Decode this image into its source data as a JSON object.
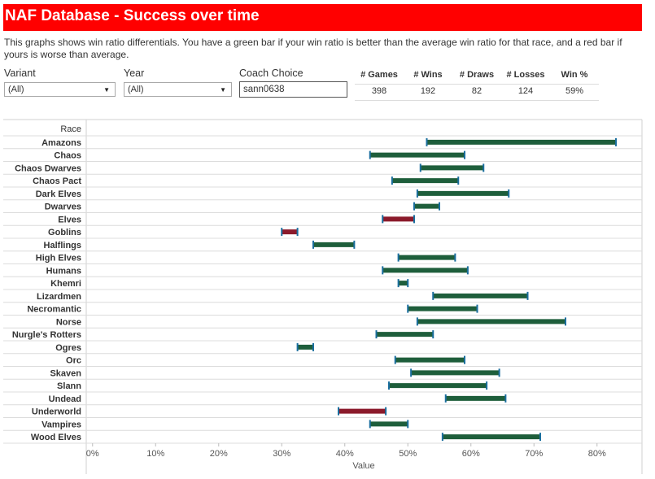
{
  "header": {
    "title": "NAF Database - Success over time"
  },
  "description": "This graphs shows win ratio differentials.  You have a green bar if your win ratio is better than the average win ratio for that race, and a red bar if yours is worse than average.",
  "filters": {
    "variant": {
      "label": "Variant",
      "value": "(All)"
    },
    "year": {
      "label": "Year",
      "value": "(All)"
    },
    "coach": {
      "label": "Coach Choice",
      "value": "sann0638"
    }
  },
  "stats": {
    "headers": [
      "# Games",
      "# Wins",
      "# Draws",
      "# Losses",
      "Win %"
    ],
    "values": [
      "398",
      "192",
      "82",
      "124",
      "59%"
    ]
  },
  "colors": {
    "better": "#1e5e3b",
    "worse": "#8b1a2b",
    "cap": "#1a6e9e",
    "header": "#ff0000"
  },
  "chart_data": {
    "type": "bar",
    "orientation": "horizontal",
    "row_header": "Race",
    "xlabel": "Value",
    "xlim": [
      -0.01,
      0.87
    ],
    "ticks": [
      0,
      0.1,
      0.2,
      0.3,
      0.4,
      0.5,
      0.6,
      0.7,
      0.8
    ],
    "tick_labels": [
      "0%",
      "10%",
      "20%",
      "30%",
      "40%",
      "50%",
      "60%",
      "70%",
      "80%"
    ],
    "categories": [
      "Amazons",
      "Chaos",
      "Chaos Dwarves",
      "Chaos Pact",
      "Dark Elves",
      "Dwarves",
      "Elves",
      "Goblins",
      "Halflings",
      "High Elves",
      "Humans",
      "Khemri",
      "Lizardmen",
      "Necromantic",
      "Norse",
      "Nurgle's Rotters",
      "Ogres",
      "Orc",
      "Skaven",
      "Slann",
      "Undead",
      "Underworld",
      "Vampires",
      "Wood Elves"
    ],
    "ranges": [
      [
        0.53,
        0.83
      ],
      [
        0.44,
        0.59
      ],
      [
        0.52,
        0.62
      ],
      [
        0.475,
        0.58
      ],
      [
        0.515,
        0.66
      ],
      [
        0.51,
        0.55
      ],
      [
        0.51,
        0.46
      ],
      [
        0.325,
        0.3
      ],
      [
        0.35,
        0.415
      ],
      [
        0.485,
        0.575
      ],
      [
        0.46,
        0.595
      ],
      [
        0.485,
        0.5
      ],
      [
        0.54,
        0.69
      ],
      [
        0.5,
        0.61
      ],
      [
        0.515,
        0.75
      ],
      [
        0.45,
        0.54
      ],
      [
        0.325,
        0.35
      ],
      [
        0.48,
        0.59
      ],
      [
        0.505,
        0.645
      ],
      [
        0.47,
        0.625
      ],
      [
        0.56,
        0.655
      ],
      [
        0.465,
        0.39
      ],
      [
        0.44,
        0.5
      ],
      [
        0.555,
        0.71
      ]
    ]
  }
}
